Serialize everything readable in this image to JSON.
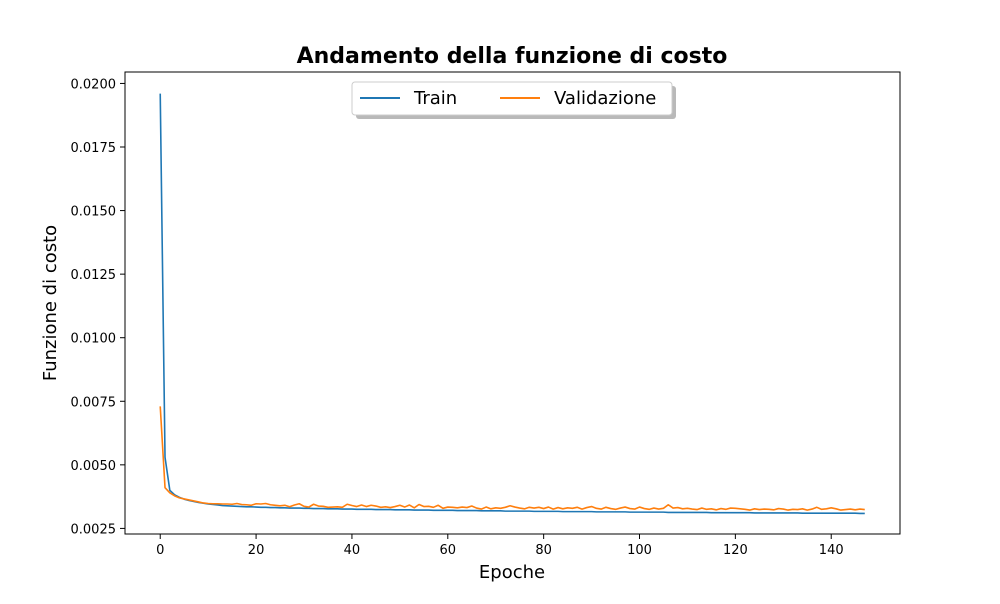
{
  "chart_data": {
    "type": "line",
    "title": "Andamento della funzione di costo",
    "xlabel": "Epoche",
    "ylabel": "Funzione di costo",
    "xlim": [
      -7.35,
      154.35
    ],
    "ylim": [
      0.00228,
      0.02045
    ],
    "grid": false,
    "legend_position": "top-center",
    "x_ticks": [
      0,
      20,
      40,
      60,
      80,
      100,
      120,
      140
    ],
    "x_tick_labels": [
      "0",
      "20",
      "40",
      "60",
      "80",
      "100",
      "120",
      "140"
    ],
    "y_ticks": [
      0.0025,
      0.005,
      0.0075,
      0.01,
      0.0125,
      0.015,
      0.0175,
      0.02
    ],
    "y_tick_labels": [
      "0.0025",
      "0.0050",
      "0.0075",
      "0.0100",
      "0.0125",
      "0.0150",
      "0.0175",
      "0.0200"
    ],
    "x_start": 0,
    "x_step": 1,
    "series": [
      {
        "name": "Train",
        "color": "#1f77b4",
        "values": [
          0.0196,
          0.0053,
          0.004,
          0.00382,
          0.00372,
          0.00365,
          0.0036,
          0.00356,
          0.00352,
          0.00349,
          0.00346,
          0.00344,
          0.00342,
          0.0034,
          0.00339,
          0.00338,
          0.00337,
          0.00336,
          0.00335,
          0.00335,
          0.00334,
          0.00333,
          0.00333,
          0.00332,
          0.00332,
          0.00331,
          0.00331,
          0.0033,
          0.0033,
          0.0033,
          0.00329,
          0.00329,
          0.00328,
          0.00328,
          0.00328,
          0.00327,
          0.00327,
          0.00327,
          0.00326,
          0.00326,
          0.00326,
          0.00325,
          0.00325,
          0.00325,
          0.00325,
          0.00324,
          0.00324,
          0.00324,
          0.00324,
          0.00323,
          0.00323,
          0.00323,
          0.00323,
          0.00322,
          0.00322,
          0.00322,
          0.00322,
          0.00321,
          0.00321,
          0.00321,
          0.00321,
          0.00321,
          0.0032,
          0.0032,
          0.0032,
          0.0032,
          0.0032,
          0.00319,
          0.00319,
          0.00319,
          0.00319,
          0.00319,
          0.00318,
          0.00318,
          0.00318,
          0.00318,
          0.00318,
          0.00318,
          0.00317,
          0.00317,
          0.00317,
          0.00317,
          0.00317,
          0.00317,
          0.00316,
          0.00316,
          0.00316,
          0.00316,
          0.00316,
          0.00316,
          0.00316,
          0.00315,
          0.00315,
          0.00315,
          0.00315,
          0.00315,
          0.00315,
          0.00315,
          0.00314,
          0.00314,
          0.00314,
          0.00314,
          0.00314,
          0.00314,
          0.00314,
          0.00314,
          0.00313,
          0.00313,
          0.00313,
          0.00313,
          0.00313,
          0.00313,
          0.00313,
          0.00313,
          0.00313,
          0.00312,
          0.00312,
          0.00312,
          0.00312,
          0.00312,
          0.00312,
          0.00312,
          0.00312,
          0.00312,
          0.00311,
          0.00311,
          0.00311,
          0.00311,
          0.00311,
          0.00311,
          0.00311,
          0.00311,
          0.00311,
          0.00311,
          0.0031,
          0.0031,
          0.0031,
          0.0031,
          0.0031,
          0.0031,
          0.0031,
          0.0031,
          0.0031,
          0.0031,
          0.0031,
          0.0031,
          0.00309,
          0.00309
        ]
      },
      {
        "name": "Validazione",
        "color": "#ff7f0e",
        "values": [
          0.0073,
          0.0041,
          0.0039,
          0.00378,
          0.0037,
          0.00366,
          0.00362,
          0.00358,
          0.00354,
          0.0035,
          0.00348,
          0.00347,
          0.00347,
          0.00346,
          0.00346,
          0.00345,
          0.00348,
          0.00344,
          0.00343,
          0.00341,
          0.00347,
          0.00346,
          0.00348,
          0.00343,
          0.00341,
          0.00339,
          0.00341,
          0.00335,
          0.00342,
          0.00347,
          0.00337,
          0.00334,
          0.00345,
          0.00338,
          0.00337,
          0.00333,
          0.00334,
          0.00335,
          0.00333,
          0.00345,
          0.0034,
          0.00336,
          0.00342,
          0.00336,
          0.00341,
          0.00338,
          0.00333,
          0.00335,
          0.00332,
          0.00336,
          0.00341,
          0.00334,
          0.00342,
          0.00331,
          0.00344,
          0.00336,
          0.00337,
          0.00333,
          0.00341,
          0.00329,
          0.00334,
          0.00333,
          0.00331,
          0.00334,
          0.00332,
          0.00338,
          0.0033,
          0.00326,
          0.00334,
          0.00327,
          0.00331,
          0.00329,
          0.00333,
          0.00339,
          0.00334,
          0.0033,
          0.00327,
          0.00333,
          0.0033,
          0.00333,
          0.00328,
          0.00334,
          0.00326,
          0.00332,
          0.00327,
          0.00331,
          0.00329,
          0.00333,
          0.00326,
          0.00332,
          0.00336,
          0.00329,
          0.00326,
          0.00333,
          0.00328,
          0.00325,
          0.0033,
          0.00334,
          0.00328,
          0.00326,
          0.00334,
          0.00328,
          0.00325,
          0.0033,
          0.00326,
          0.00329,
          0.00343,
          0.0033,
          0.00332,
          0.00327,
          0.00329,
          0.00326,
          0.00324,
          0.0033,
          0.00325,
          0.00327,
          0.00323,
          0.00328,
          0.00325,
          0.0033,
          0.00329,
          0.00327,
          0.00325,
          0.00322,
          0.00327,
          0.00324,
          0.00326,
          0.00325,
          0.00323,
          0.00328,
          0.00326,
          0.00322,
          0.00325,
          0.00324,
          0.00327,
          0.00322,
          0.00326,
          0.00333,
          0.00325,
          0.00327,
          0.00331,
          0.00327,
          0.00322,
          0.00324,
          0.00326,
          0.00323,
          0.00326,
          0.00324
        ]
      }
    ]
  }
}
